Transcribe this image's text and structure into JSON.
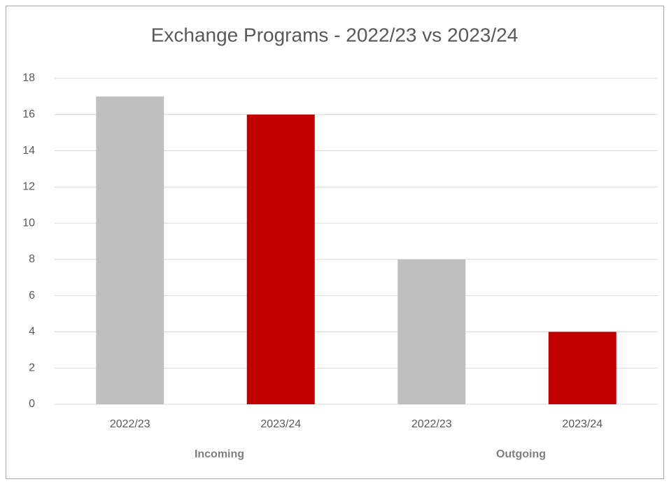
{
  "chart_data": {
    "type": "bar",
    "title": "Exchange Programs - 2022/23 vs 2023/24",
    "categories": [
      "2022/23",
      "2023/24",
      "2022/23",
      "2023/24"
    ],
    "groups": [
      "Incoming",
      "Outgoing"
    ],
    "values": [
      17,
      16,
      8,
      4
    ],
    "colors": [
      "#bfbfbf",
      "#c00000",
      "#bfbfbf",
      "#c00000"
    ],
    "ylim": [
      0,
      18
    ],
    "yticks": [
      0,
      2,
      4,
      6,
      8,
      10,
      12,
      14,
      16,
      18
    ],
    "grid": true
  }
}
